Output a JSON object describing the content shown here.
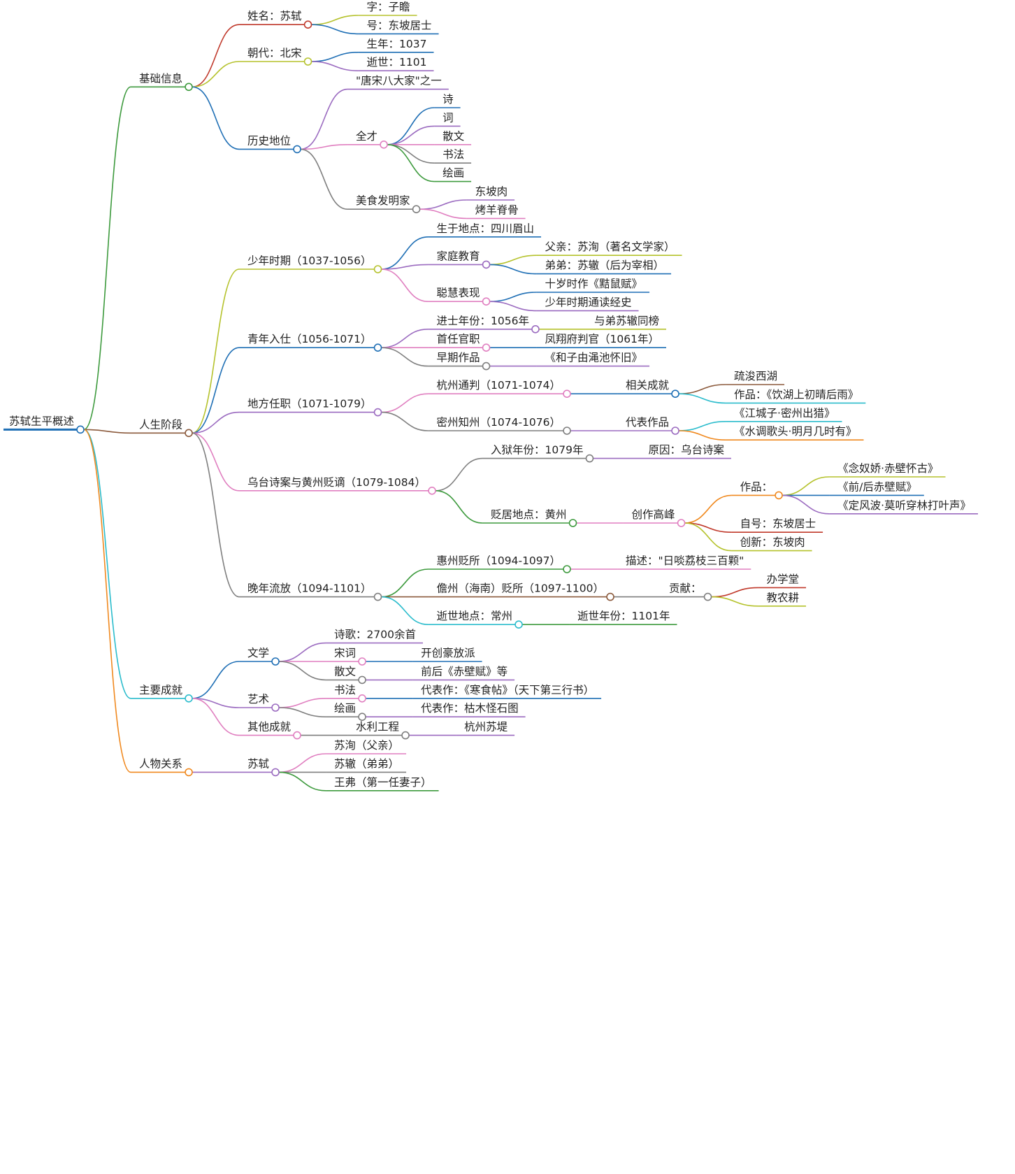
{
  "root": {
    "label": "苏轼生平概述",
    "children": [
      {
        "label": "基础信息",
        "children": [
          {
            "label": "姓名：苏轼",
            "children": [
              {
                "label": "字：子瞻"
              },
              {
                "label": "号：东坡居士"
              }
            ]
          },
          {
            "label": "朝代：北宋",
            "children": [
              {
                "label": "生年：1037"
              },
              {
                "label": "逝世：1101"
              }
            ]
          },
          {
            "label": "历史地位",
            "children": [
              {
                "label": "\"唐宋八大家\"之一"
              },
              {
                "label": "全才",
                "children": [
                  {
                    "label": "诗"
                  },
                  {
                    "label": "词"
                  },
                  {
                    "label": "散文"
                  },
                  {
                    "label": "书法"
                  },
                  {
                    "label": "绘画"
                  }
                ]
              },
              {
                "label": "美食发明家",
                "children": [
                  {
                    "label": "东坡肉"
                  },
                  {
                    "label": "烤羊脊骨"
                  }
                ]
              }
            ]
          }
        ]
      },
      {
        "label": "人生阶段",
        "children": [
          {
            "label": "少年时期（1037-1056）",
            "children": [
              {
                "label": "生于地点：四川眉山"
              },
              {
                "label": "家庭教育",
                "children": [
                  {
                    "label": "父亲：苏洵（著名文学家）"
                  },
                  {
                    "label": "弟弟：苏辙（后为宰相）"
                  }
                ]
              },
              {
                "label": "聪慧表现",
                "children": [
                  {
                    "label": "十岁时作《黠鼠赋》"
                  },
                  {
                    "label": "少年时期通读经史"
                  }
                ]
              }
            ]
          },
          {
            "label": "青年入仕（1056-1071）",
            "children": [
              {
                "label": "进士年份：1056年",
                "children": [
                  {
                    "label": "与弟苏辙同榜"
                  }
                ]
              },
              {
                "label": "首任官职",
                "children": [
                  {
                    "label": "凤翔府判官（1061年）"
                  }
                ]
              },
              {
                "label": "早期作品",
                "children": [
                  {
                    "label": "《和子由渑池怀旧》"
                  }
                ]
              }
            ]
          },
          {
            "label": "地方任职（1071-1079）",
            "children": [
              {
                "label": "杭州通判（1071-1074）",
                "children": [
                  {
                    "label": "相关成就",
                    "children": [
                      {
                        "label": "疏浚西湖"
                      },
                      {
                        "label": "作品：《饮湖上初晴后雨》"
                      }
                    ]
                  }
                ]
              },
              {
                "label": "密州知州（1074-1076）",
                "children": [
                  {
                    "label": "代表作品",
                    "children": [
                      {
                        "label": "《江城子·密州出猎》"
                      },
                      {
                        "label": "《水调歌头·明月几时有》"
                      }
                    ]
                  }
                ]
              }
            ]
          },
          {
            "label": "乌台诗案与黄州贬谪（1079-1084）",
            "children": [
              {
                "label": "入狱年份：1079年",
                "children": [
                  {
                    "label": "原因：乌台诗案"
                  }
                ]
              },
              {
                "label": "贬居地点：黄州",
                "children": [
                  {
                    "label": "创作高峰",
                    "children": [
                      {
                        "label": "作品：",
                        "children": [
                          {
                            "label": "《念奴娇·赤壁怀古》"
                          },
                          {
                            "label": "《前/后赤壁赋》"
                          },
                          {
                            "label": "《定风波·莫听穿林打叶声》"
                          }
                        ]
                      },
                      {
                        "label": "自号：东坡居士"
                      },
                      {
                        "label": "创新：东坡肉"
                      }
                    ]
                  }
                ]
              }
            ]
          },
          {
            "label": "晚年流放（1094-1101）",
            "children": [
              {
                "label": "惠州贬所（1094-1097）",
                "children": [
                  {
                    "label": "描述：\"日啖荔枝三百颗\""
                  }
                ]
              },
              {
                "label": "儋州（海南）贬所（1097-1100）",
                "children": [
                  {
                    "label": "贡献：",
                    "children": [
                      {
                        "label": "办学堂"
                      },
                      {
                        "label": "教农耕"
                      }
                    ]
                  }
                ]
              },
              {
                "label": "逝世地点：常州",
                "children": [
                  {
                    "label": "逝世年份：1101年"
                  }
                ]
              }
            ]
          }
        ]
      },
      {
        "label": "主要成就",
        "children": [
          {
            "label": "文学",
            "children": [
              {
                "label": "诗歌：2700余首"
              },
              {
                "label": "宋词",
                "children": [
                  {
                    "label": "开创豪放派"
                  }
                ]
              },
              {
                "label": "散文",
                "children": [
                  {
                    "label": "前后《赤壁赋》等"
                  }
                ]
              }
            ]
          },
          {
            "label": "艺术",
            "children": [
              {
                "label": "书法",
                "children": [
                  {
                    "label": "代表作：《寒食帖》（天下第三行书）"
                  }
                ]
              },
              {
                "label": "绘画",
                "children": [
                  {
                    "label": "代表作：枯木怪石图"
                  }
                ]
              }
            ]
          },
          {
            "label": "其他成就",
            "children": [
              {
                "label": "水利工程",
                "children": [
                  {
                    "label": "杭州苏堤"
                  }
                ]
              }
            ]
          }
        ]
      },
      {
        "label": "人物关系",
        "children": [
          {
            "label": "苏轼",
            "children": [
              {
                "label": "苏洵（父亲）"
              },
              {
                "label": "苏辙（弟弟）"
              },
              {
                "label": "王弗（第一任妻子）"
              }
            ]
          }
        ]
      }
    ]
  }
}
